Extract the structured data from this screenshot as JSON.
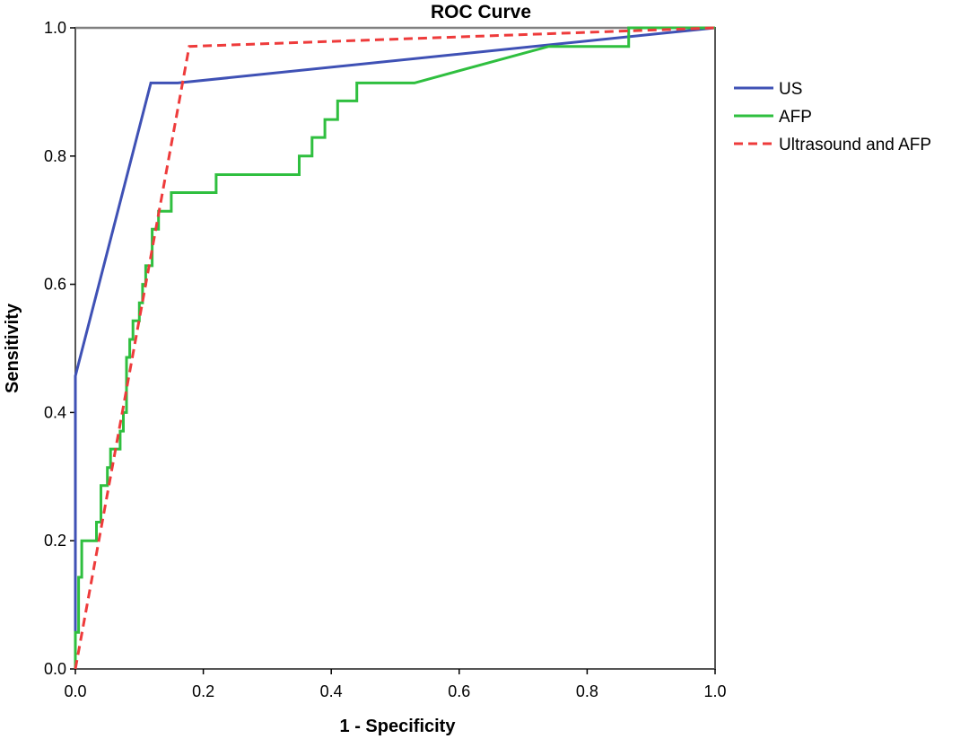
{
  "chart_data": {
    "type": "line",
    "title": "ROC Curve",
    "xlabel": "1 - Specificity",
    "ylabel": "Sensitivity",
    "xlim": [
      0.0,
      1.0
    ],
    "ylim": [
      0.0,
      1.0
    ],
    "x_ticks": [
      "0.0",
      "0.2",
      "0.4",
      "0.6",
      "0.8",
      "1.0"
    ],
    "y_ticks": [
      "0.0",
      "0.2",
      "0.4",
      "0.6",
      "0.8",
      "1.0"
    ],
    "grid": false,
    "reference_line": {
      "from": [
        0.0,
        1.0
      ],
      "to": [
        1.0,
        1.0
      ],
      "color": "#808080"
    },
    "legend": {
      "placement": "right"
    },
    "series": [
      {
        "name": "US",
        "color": "#3f51b5",
        "dash": "solid",
        "points": [
          [
            0.0,
            0.0
          ],
          [
            0.0,
            0.457
          ],
          [
            0.118,
            0.914
          ],
          [
            0.16,
            0.914
          ],
          [
            1.0,
            1.0
          ]
        ]
      },
      {
        "name": "AFP",
        "color": "#2fbf3f",
        "dash": "solid",
        "points": [
          [
            0.0,
            0.0
          ],
          [
            0.0,
            0.057
          ],
          [
            0.005,
            0.057
          ],
          [
            0.005,
            0.143
          ],
          [
            0.01,
            0.143
          ],
          [
            0.01,
            0.2
          ],
          [
            0.033,
            0.2
          ],
          [
            0.033,
            0.229
          ],
          [
            0.04,
            0.229
          ],
          [
            0.04,
            0.286
          ],
          [
            0.05,
            0.286
          ],
          [
            0.05,
            0.314
          ],
          [
            0.055,
            0.314
          ],
          [
            0.055,
            0.343
          ],
          [
            0.07,
            0.343
          ],
          [
            0.07,
            0.371
          ],
          [
            0.075,
            0.371
          ],
          [
            0.075,
            0.4
          ],
          [
            0.08,
            0.4
          ],
          [
            0.08,
            0.486
          ],
          [
            0.085,
            0.486
          ],
          [
            0.085,
            0.514
          ],
          [
            0.09,
            0.514
          ],
          [
            0.09,
            0.543
          ],
          [
            0.1,
            0.543
          ],
          [
            0.1,
            0.571
          ],
          [
            0.105,
            0.571
          ],
          [
            0.105,
            0.6
          ],
          [
            0.11,
            0.6
          ],
          [
            0.11,
            0.629
          ],
          [
            0.12,
            0.629
          ],
          [
            0.12,
            0.686
          ],
          [
            0.13,
            0.686
          ],
          [
            0.13,
            0.714
          ],
          [
            0.15,
            0.714
          ],
          [
            0.15,
            0.743
          ],
          [
            0.22,
            0.743
          ],
          [
            0.22,
            0.771
          ],
          [
            0.35,
            0.771
          ],
          [
            0.35,
            0.8
          ],
          [
            0.37,
            0.8
          ],
          [
            0.37,
            0.829
          ],
          [
            0.39,
            0.829
          ],
          [
            0.39,
            0.857
          ],
          [
            0.41,
            0.857
          ],
          [
            0.41,
            0.886
          ],
          [
            0.44,
            0.886
          ],
          [
            0.44,
            0.914
          ],
          [
            0.53,
            0.914
          ],
          [
            0.74,
            0.971
          ],
          [
            0.865,
            0.971
          ],
          [
            0.865,
            1.0
          ],
          [
            1.0,
            1.0
          ]
        ]
      },
      {
        "name": "Ultrasound and AFP",
        "color": "#ee3b3b",
        "dash": "dashed",
        "points": [
          [
            0.0,
            0.0
          ],
          [
            0.178,
            0.971
          ],
          [
            1.0,
            1.0
          ]
        ]
      }
    ]
  }
}
